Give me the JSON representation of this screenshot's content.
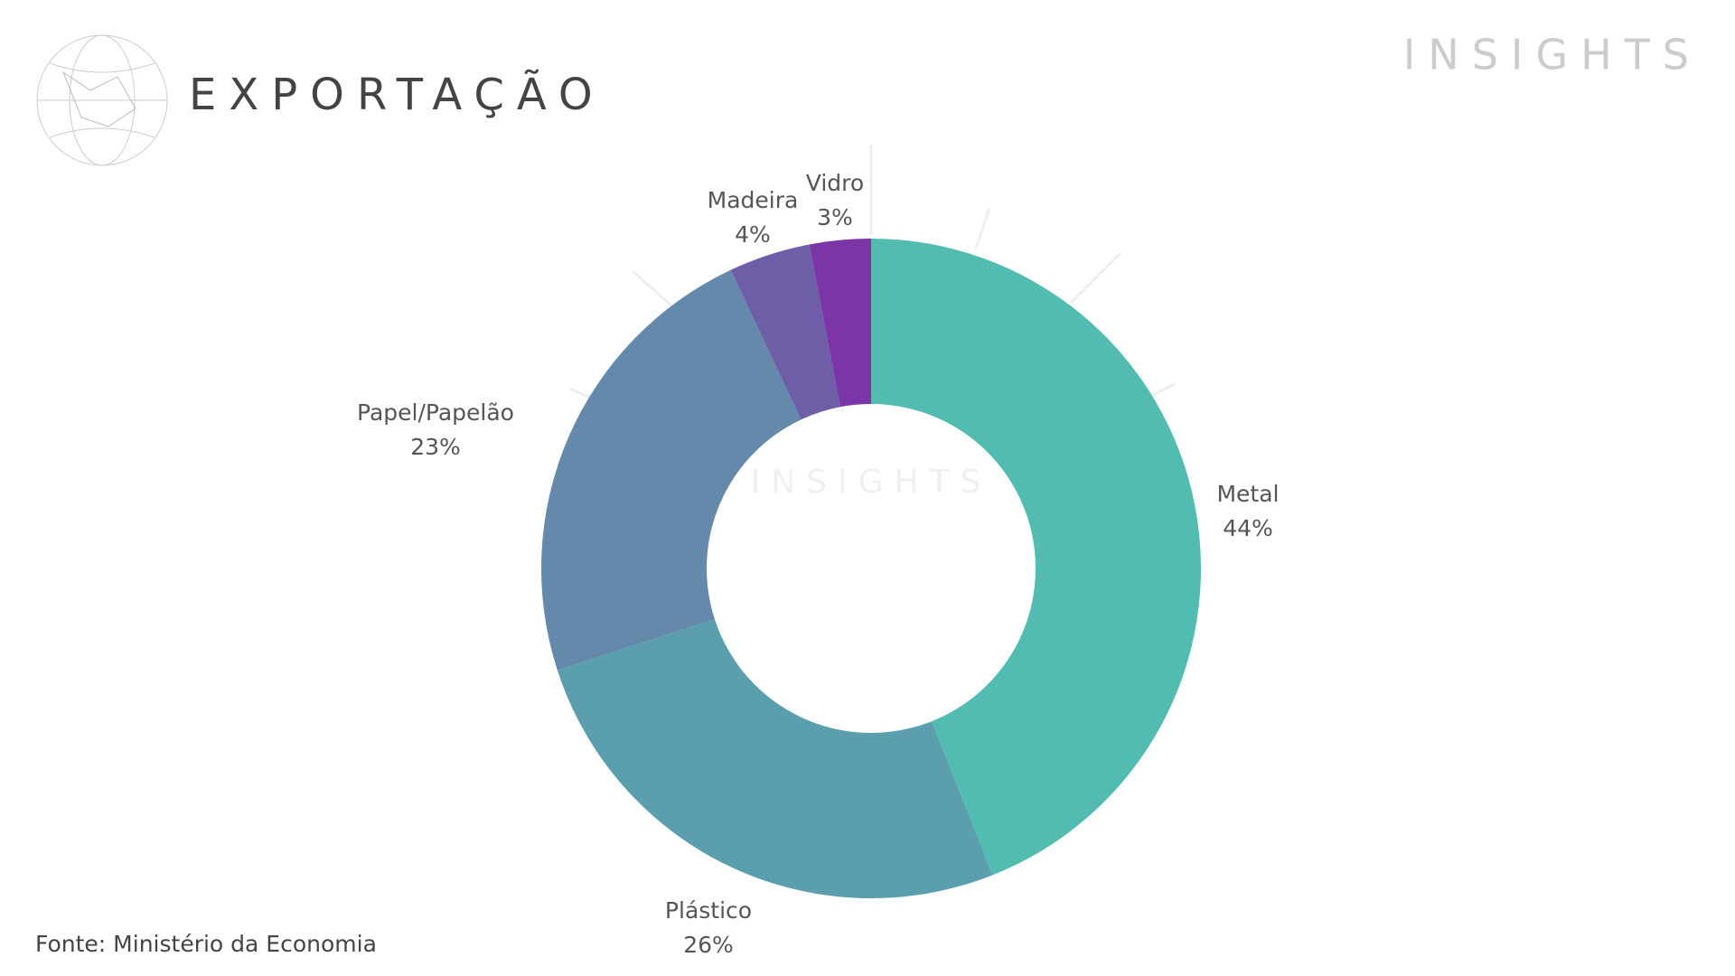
{
  "chart_data": {
    "type": "pie",
    "donut": true,
    "title": "EXPORTAÇÃO",
    "brand": "INSIGHTS",
    "watermark": "INSIGHTS",
    "source": "Fonte: Ministério da Economia",
    "categories": [
      "Metal",
      "Plástico",
      "Papel/Papelão",
      "Madeira",
      "Vidro"
    ],
    "values": [
      44,
      26,
      23,
      4,
      3
    ],
    "value_labels": [
      "44%",
      "26%",
      "23%",
      "4%",
      "3%"
    ],
    "colors": [
      "#52bcb0",
      "#5b9eae",
      "#6589ab",
      "#6e5ea8",
      "#7b35a6"
    ]
  }
}
